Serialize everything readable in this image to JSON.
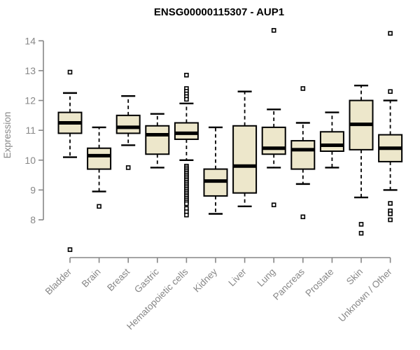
{
  "colors": {
    "background": "#FFFFFF",
    "axis": "#878787",
    "box_fill": "#EDE7CB",
    "box_stroke": "#000000"
  },
  "chart_data": {
    "type": "boxplot",
    "title": "ENSG00000115307 - AUP1",
    "xlabel": "",
    "ylabel": "Expression",
    "ylim": [
      8,
      14
    ],
    "yticks": [
      8,
      9,
      10,
      11,
      12,
      13,
      14
    ],
    "grid": false,
    "legend": "none",
    "categories": [
      "Bladder",
      "Brain",
      "Breast",
      "Gastric",
      "Hematopoietic cells",
      "Kidney",
      "Liver",
      "Lung",
      "Pancreas",
      "Prostate",
      "Skin",
      "Unknown / Other"
    ],
    "series": [
      {
        "name": "Bladder",
        "whisker_low": 10.1,
        "q1": 10.9,
        "median": 11.25,
        "q3": 11.6,
        "whisker_high": 12.25,
        "outliers": [
          12.95,
          7.0
        ]
      },
      {
        "name": "Brain",
        "whisker_low": 8.95,
        "q1": 9.7,
        "median": 10.15,
        "q3": 10.4,
        "whisker_high": 11.1,
        "outliers": [
          8.45
        ]
      },
      {
        "name": "Breast",
        "whisker_low": 10.5,
        "q1": 10.9,
        "median": 11.1,
        "q3": 11.5,
        "whisker_high": 12.15,
        "outliers": [
          9.75
        ]
      },
      {
        "name": "Gastric",
        "whisker_low": 9.75,
        "q1": 10.2,
        "median": 10.85,
        "q3": 11.15,
        "whisker_high": 11.55,
        "outliers": []
      },
      {
        "name": "Hematopoietic cells",
        "whisker_low": 10.0,
        "q1": 10.7,
        "median": 10.9,
        "q3": 11.25,
        "whisker_high": 11.9,
        "outliers": [
          12.85,
          12.4,
          12.31,
          12.22,
          12.13,
          12.04,
          9.8,
          9.74,
          9.68,
          9.62,
          9.56,
          9.5,
          9.44,
          9.38,
          9.32,
          9.26,
          9.2,
          9.14,
          9.08,
          9.02,
          8.96,
          8.9,
          8.84,
          8.78,
          8.72,
          8.66,
          8.6,
          8.54,
          8.38,
          8.27,
          8.16
        ]
      },
      {
        "name": "Kidney",
        "whisker_low": 8.2,
        "q1": 8.8,
        "median": 9.3,
        "q3": 9.7,
        "whisker_high": 11.1,
        "outliers": []
      },
      {
        "name": "Liver",
        "whisker_low": 8.45,
        "q1": 8.9,
        "median": 9.8,
        "q3": 11.15,
        "whisker_high": 12.3,
        "outliers": []
      },
      {
        "name": "Lung",
        "whisker_low": 9.75,
        "q1": 10.2,
        "median": 10.4,
        "q3": 11.1,
        "whisker_high": 11.7,
        "outliers": [
          14.35,
          8.5
        ]
      },
      {
        "name": "Pancreas",
        "whisker_low": 9.2,
        "q1": 9.7,
        "median": 10.35,
        "q3": 10.65,
        "whisker_high": 11.25,
        "outliers": [
          12.4,
          8.1
        ]
      },
      {
        "name": "Prostate",
        "whisker_low": 9.75,
        "q1": 10.3,
        "median": 10.5,
        "q3": 10.95,
        "whisker_high": 11.6,
        "outliers": []
      },
      {
        "name": "Skin",
        "whisker_low": 8.75,
        "q1": 10.35,
        "median": 11.2,
        "q3": 12.0,
        "whisker_high": 12.5,
        "outliers": [
          7.85,
          7.55
        ]
      },
      {
        "name": "Unknown / Other",
        "whisker_low": 9.0,
        "q1": 9.95,
        "median": 10.4,
        "q3": 10.85,
        "whisker_high": 12.0,
        "outliers": [
          14.25,
          12.3,
          8.55,
          8.3,
          8.2,
          8.0
        ]
      }
    ]
  }
}
